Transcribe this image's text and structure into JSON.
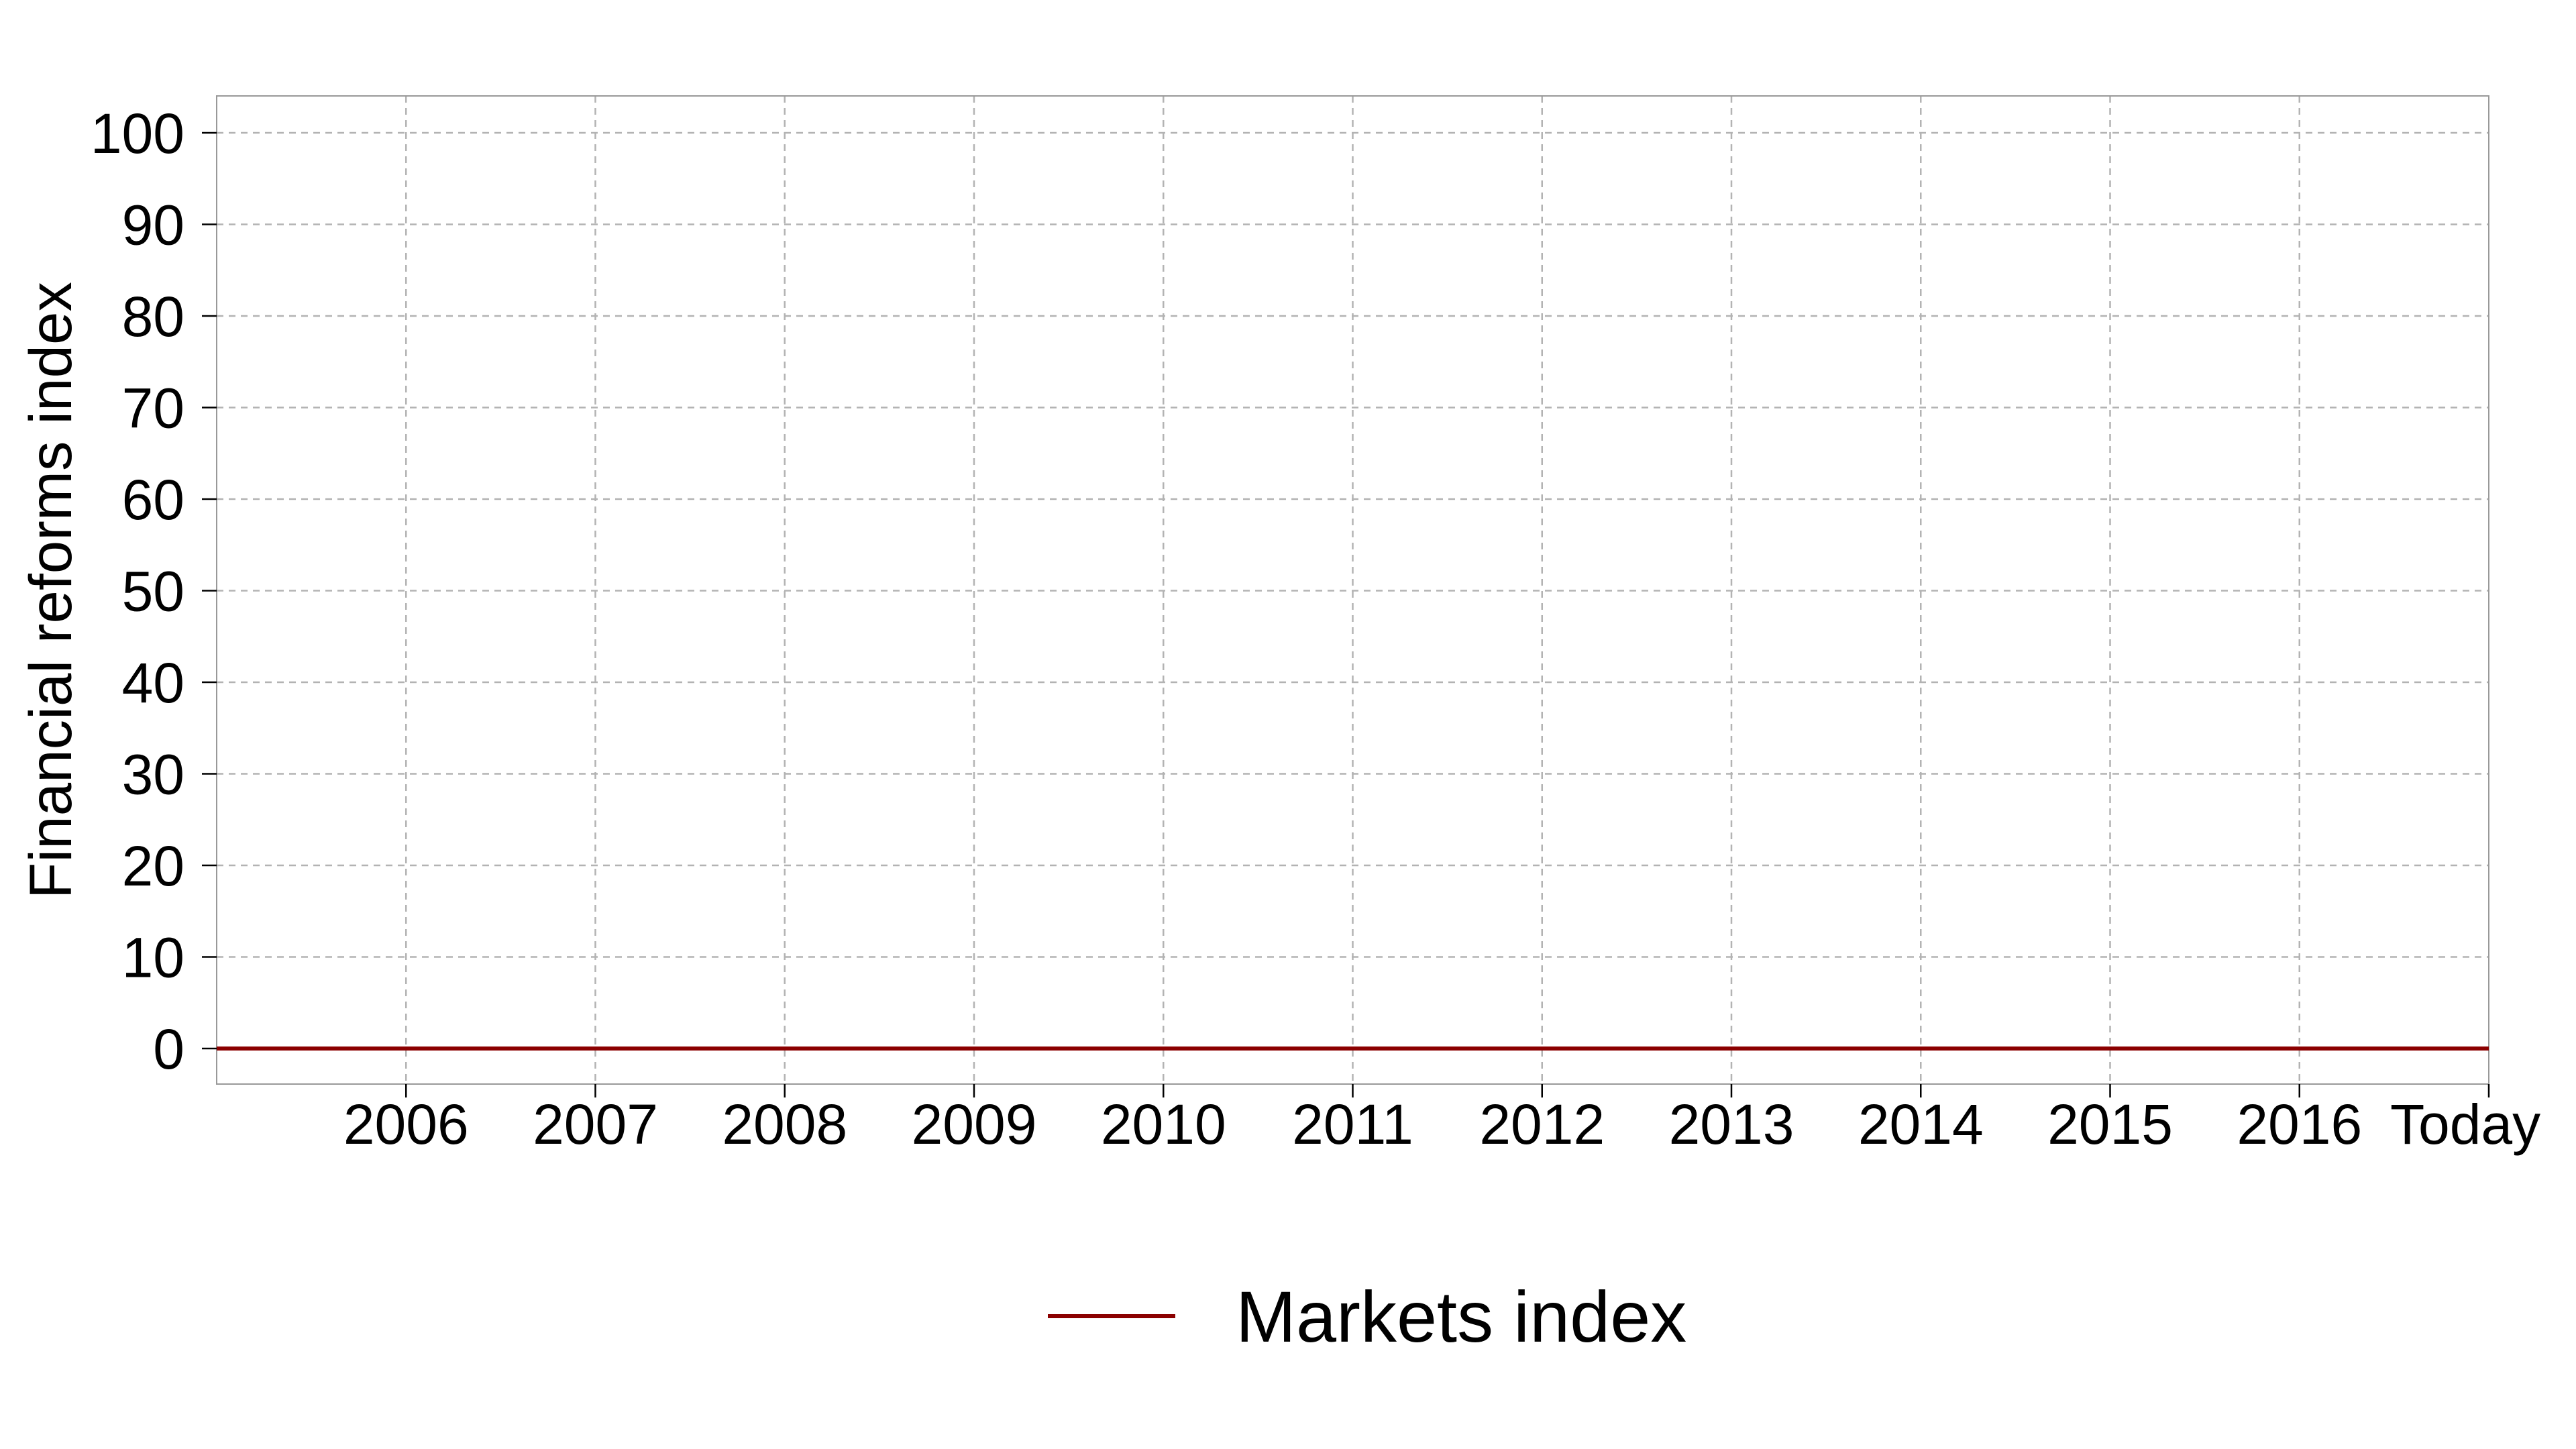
{
  "chart_data": {
    "type": "line",
    "title": "",
    "xlabel": "",
    "ylabel": "Financial reforms index",
    "x_ticks": [
      "2006",
      "2007",
      "2008",
      "2009",
      "2010",
      "2011",
      "2012",
      "2013",
      "2014",
      "2015",
      "2016",
      "Today"
    ],
    "x": [
      2005,
      2006,
      2007,
      2008,
      2009,
      2010,
      2011,
      2012,
      2013,
      2014,
      2015,
      2016,
      2017
    ],
    "xlim": [
      2005,
      2017
    ],
    "ylim": [
      0,
      100
    ],
    "y_ticks": [
      0,
      10,
      20,
      30,
      40,
      50,
      60,
      70,
      80,
      90,
      100
    ],
    "grid": true,
    "legend_position": "bottom",
    "series": [
      {
        "name": "Markets index",
        "color": "#8b0000",
        "values": [
          0,
          0,
          0,
          0,
          0,
          0,
          0,
          0,
          0,
          0,
          0,
          0,
          0
        ]
      }
    ]
  }
}
